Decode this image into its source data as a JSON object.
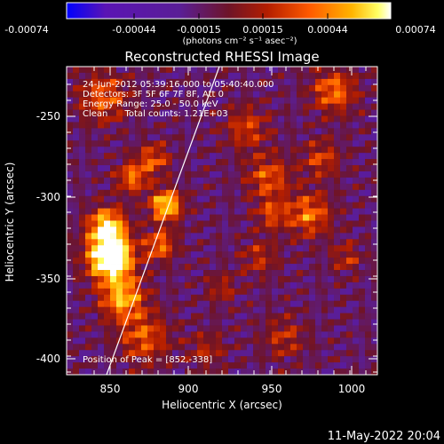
{
  "colorbar": {
    "tick_labels": [
      "-0.00074",
      "-0.00044",
      "-0.00015",
      "0.00015",
      "0.00044",
      "0.00074"
    ],
    "unit_label": "(photons cm⁻² s⁻¹ asec⁻²)",
    "range": [
      -0.00074,
      0.00074
    ],
    "colors": [
      "#0000ff",
      "#5a14b4",
      "#5a1e96",
      "#6e1428",
      "#b41e00",
      "#ff5a00",
      "#ffb400",
      "#ffff64",
      "#ffffff"
    ]
  },
  "image": {
    "title": "Reconstructed RHESSI Image",
    "info_lines": [
      "24-Jun-2012 05:39:16.000 to 05:40:40.000",
      "Detectors: 3F 5F 6F 7F 8F, Att 0",
      "Energy Range: 25.0 - 50.0 keV",
      "Clean      Total counts: 1.21E+03"
    ],
    "peak_label": "Position of Peak = [852,-338]",
    "xlabel": "Heliocentric X (arcsec)",
    "ylabel": "Heliocentric Y (arcsec)",
    "x_ticks": [
      "850",
      "900",
      "950",
      "1000"
    ],
    "y_ticks": [
      "-250",
      "-300",
      "-350",
      "-400"
    ],
    "xlim": [
      822,
      1017
    ],
    "ylim": [
      -410,
      -220
    ]
  },
  "footer": {
    "date": "11-May-2022 20:04"
  }
}
